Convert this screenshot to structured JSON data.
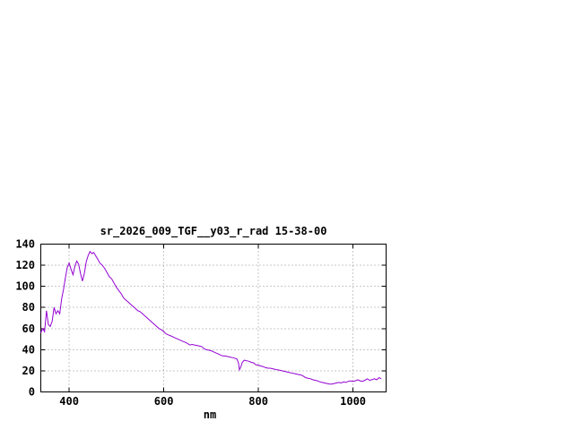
{
  "window": {
    "background": "#ffffff"
  },
  "chart_data": {
    "type": "line",
    "title": "sr_2026_009_TGF__y03_r_rad 15-38-00",
    "xlabel": "nm",
    "ylabel": "",
    "xlim": [
      340,
      1070
    ],
    "ylim": [
      0,
      140
    ],
    "xticks": [
      400,
      600,
      800,
      1000
    ],
    "yticks": [
      0,
      20,
      40,
      60,
      80,
      100,
      120,
      140
    ],
    "grid": true,
    "legend": "none",
    "grid_color": "#909090",
    "border_color": "#000000",
    "text_color": "#000000",
    "series": [
      {
        "name": "sr_2026_009_TGF__y03_r_rad",
        "color": "#9400d3",
        "x": [
          340,
          344,
          348,
          352,
          356,
          360,
          364,
          368,
          372,
          376,
          380,
          384,
          388,
          392,
          396,
          400,
          404,
          408,
          412,
          416,
          420,
          424,
          428,
          432,
          436,
          440,
          444,
          448,
          452,
          456,
          460,
          465,
          470,
          475,
          480,
          485,
          490,
          495,
          500,
          505,
          510,
          515,
          520,
          525,
          530,
          535,
          540,
          545,
          550,
          555,
          560,
          565,
          570,
          575,
          580,
          585,
          590,
          595,
          600,
          605,
          610,
          615,
          620,
          625,
          630,
          635,
          640,
          645,
          650,
          655,
          660,
          665,
          670,
          675,
          680,
          685,
          690,
          695,
          700,
          705,
          710,
          715,
          720,
          725,
          730,
          735,
          740,
          745,
          750,
          755,
          758,
          760,
          763,
          766,
          770,
          775,
          780,
          785,
          790,
          795,
          800,
          805,
          810,
          815,
          820,
          825,
          830,
          835,
          840,
          845,
          850,
          855,
          860,
          865,
          870,
          875,
          880,
          885,
          890,
          895,
          900,
          905,
          910,
          915,
          920,
          925,
          930,
          935,
          940,
          945,
          950,
          955,
          960,
          965,
          970,
          975,
          980,
          985,
          990,
          995,
          1000,
          1005,
          1010,
          1015,
          1020,
          1025,
          1030,
          1035,
          1040,
          1045,
          1050,
          1055,
          1060
        ],
        "values": [
          56,
          60,
          57,
          77,
          64,
          62,
          67,
          80,
          74,
          77,
          74,
          88,
          97,
          108,
          118,
          122,
          116,
          111,
          119,
          124,
          121,
          112,
          105,
          112,
          123,
          129,
          133,
          131,
          132,
          129,
          126,
          122,
          120,
          117,
          113,
          109,
          107,
          103,
          99,
          96,
          93,
          89,
          87,
          85,
          83,
          81,
          79,
          77,
          76,
          74,
          72,
          70,
          68,
          66,
          64,
          62,
          60,
          59,
          57,
          55,
          54,
          53,
          52,
          51,
          50,
          49,
          48,
          47,
          46,
          44.5,
          45,
          44.5,
          44,
          43.5,
          43,
          41,
          40,
          39.5,
          39,
          38,
          37,
          36,
          35,
          34,
          34,
          33.5,
          33,
          32.5,
          32,
          31,
          27,
          21,
          24,
          28,
          30,
          29.5,
          29,
          28,
          27.5,
          25.5,
          25.5,
          24.5,
          24,
          23,
          22.5,
          22.5,
          22,
          21.5,
          21,
          20.5,
          20,
          19.5,
          19,
          18.5,
          18,
          17.5,
          17,
          16.5,
          16,
          15,
          13.5,
          13,
          12.5,
          11.5,
          11,
          10.5,
          9.5,
          9,
          8.5,
          8,
          7.5,
          7.5,
          8,
          8.5,
          9,
          8.5,
          9.5,
          9,
          10,
          10.5,
          10,
          10.5,
          11.5,
          10.5,
          10,
          11,
          12.5,
          11,
          11.5,
          12.5,
          11.5,
          13.5,
          12.5
        ]
      }
    ]
  }
}
